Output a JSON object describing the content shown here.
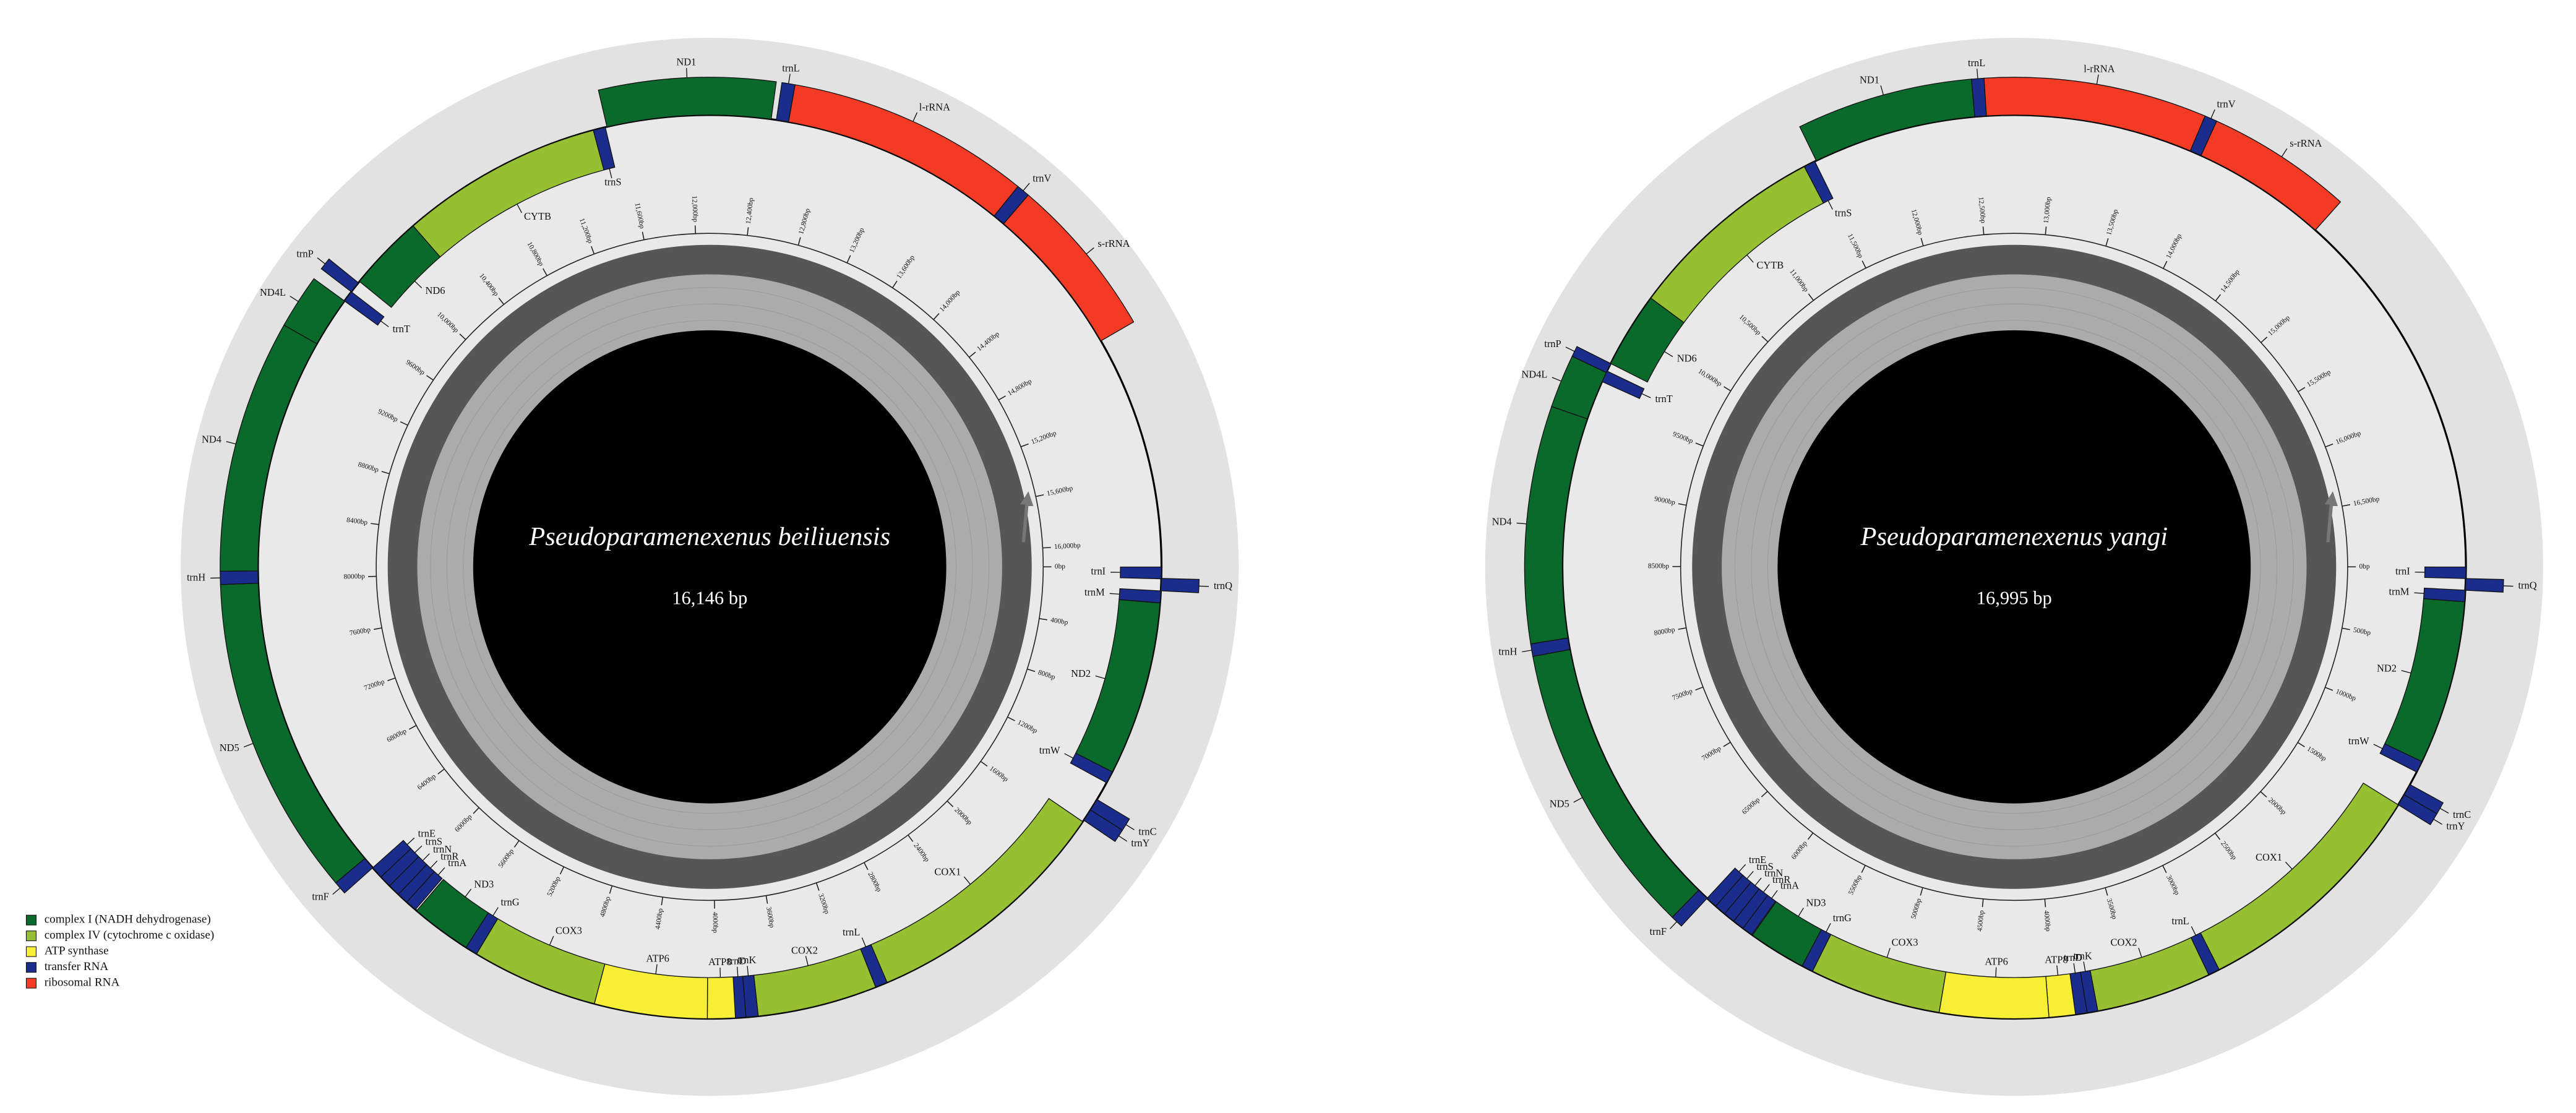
{
  "legend": [
    {
      "label": "complex I (NADH dehydrogenase)",
      "color": "#0a6a2c"
    },
    {
      "label": "complex IV (cytochrome c oxidase)",
      "color": "#96bf31"
    },
    {
      "label": "ATP synthase",
      "color": "#f7ef35"
    },
    {
      "label": "transfer RNA",
      "color": "#1b2d8c"
    },
    {
      "label": "ribosomal RNA",
      "color": "#f23a25"
    }
  ],
  "genomes": [
    {
      "name": "Pseudoparamenexenus beiliuensis",
      "size": {
        "value": 16146,
        "label": "16,146 bp"
      },
      "ticks": [
        {
          "value": 0,
          "label": "0bp"
        },
        {
          "value": 400,
          "label": "400bp"
        },
        {
          "value": 800,
          "label": "800bp"
        },
        {
          "value": 1200,
          "label": "1200bp"
        },
        {
          "value": 1600,
          "label": "1600bp"
        },
        {
          "value": 2000,
          "label": "2000bp"
        },
        {
          "value": 2400,
          "label": "2400bp"
        },
        {
          "value": 2800,
          "label": "2800bp"
        },
        {
          "value": 3200,
          "label": "3200bp"
        },
        {
          "value": 3600,
          "label": "3600bp"
        },
        {
          "value": 4000,
          "label": "4000bp"
        },
        {
          "value": 4400,
          "label": "4400bp"
        },
        {
          "value": 4800,
          "label": "4800bp"
        },
        {
          "value": 5200,
          "label": "5200bp"
        },
        {
          "value": 5600,
          "label": "5600bp"
        },
        {
          "value": 6000,
          "label": "6000bp"
        },
        {
          "value": 6400,
          "label": "6400bp"
        },
        {
          "value": 6800,
          "label": "6800bp"
        },
        {
          "value": 7200,
          "label": "7200bp"
        },
        {
          "value": 7600,
          "label": "7600bp"
        },
        {
          "value": 8000,
          "label": "8000bp"
        },
        {
          "value": 8400,
          "label": "8400bp"
        },
        {
          "value": 8800,
          "label": "8800bp"
        },
        {
          "value": 9200,
          "label": "9200bp"
        },
        {
          "value": 9600,
          "label": "9600bp"
        },
        {
          "value": 10000,
          "label": "10,000bp"
        },
        {
          "value": 10400,
          "label": "10,400bp"
        },
        {
          "value": 10800,
          "label": "10,800bp"
        },
        {
          "value": 11200,
          "label": "11,200bp"
        },
        {
          "value": 11600,
          "label": "11,600bp"
        },
        {
          "value": 12000,
          "label": "12,000bp"
        },
        {
          "value": 12400,
          "label": "12,400bp"
        },
        {
          "value": 12800,
          "label": "12,800bp"
        },
        {
          "value": 13200,
          "label": "13,200bp"
        },
        {
          "value": 13600,
          "label": "13,600bp"
        },
        {
          "value": 14000,
          "label": "14,000bp"
        },
        {
          "value": 14400,
          "label": "14,400bp"
        },
        {
          "value": 14800,
          "label": "14,800bp"
        },
        {
          "value": 15200,
          "label": "15,200bp"
        },
        {
          "value": 15600,
          "label": "15,600bp"
        },
        {
          "value": 16000,
          "label": "16,000bp"
        }
      ],
      "forward": [
        {
          "label": "trnI",
          "start": 1,
          "end": 68,
          "color": "#1b2d8c"
        },
        {
          "label": "trnM",
          "start": 137,
          "end": 205,
          "color": "#1b2d8c"
        },
        {
          "label": "ND2",
          "start": 206,
          "end": 1210,
          "color": "#0a6a2c"
        },
        {
          "label": "trnW",
          "start": 1210,
          "end": 1280,
          "color": "#1b2d8c"
        },
        {
          "label": "COX1",
          "start": 1540,
          "end": 3000,
          "color": "#96bf31"
        },
        {
          "label": "trnL",
          "start": 3000,
          "end": 3070,
          "color": "#1b2d8c"
        },
        {
          "label": "COX2",
          "start": 3070,
          "end": 3760,
          "color": "#96bf31"
        },
        {
          "label": "trnK",
          "start": 3760,
          "end": 3830,
          "color": "#1b2d8c"
        },
        {
          "label": "trnD",
          "start": 3830,
          "end": 3890,
          "color": "#1b2d8c"
        },
        {
          "label": "ATP8",
          "start": 3890,
          "end": 4050,
          "color": "#f7ef35"
        },
        {
          "label": "ATP6",
          "start": 4050,
          "end": 4700,
          "color": "#f7ef35"
        },
        {
          "label": "COX3",
          "start": 4700,
          "end": 5430,
          "color": "#96bf31"
        },
        {
          "label": "trnG",
          "start": 5430,
          "end": 5500,
          "color": "#1b2d8c"
        },
        {
          "label": "ND3",
          "start": 5500,
          "end": 5850,
          "color": "#0a6a2c"
        },
        {
          "label": "trnA",
          "start": 5860,
          "end": 5925,
          "color": "#1b2d8c"
        },
        {
          "label": "trnR",
          "start": 5925,
          "end": 5990,
          "color": "#1b2d8c"
        },
        {
          "label": "trnN",
          "start": 5990,
          "end": 6060,
          "color": "#1b2d8c"
        },
        {
          "label": "trnS",
          "start": 6060,
          "end": 6130,
          "color": "#1b2d8c"
        },
        {
          "label": "trnE",
          "start": 6130,
          "end": 6200,
          "color": "#1b2d8c"
        },
        {
          "label": "trnT",
          "start": 9690,
          "end": 9755,
          "color": "#1b2d8c"
        },
        {
          "label": "ND6",
          "start": 9830,
          "end": 10270,
          "color": "#0a6a2c"
        },
        {
          "label": "CYTB",
          "start": 10270,
          "end": 11440,
          "color": "#96bf31"
        },
        {
          "label": "trnS",
          "start": 11440,
          "end": 11510,
          "color": "#1b2d8c"
        }
      ],
      "reverse": [
        {
          "label": "trnQ",
          "start": 66,
          "end": 136,
          "color": "#1b2d8c"
        },
        {
          "label": "trnC",
          "start": 1390,
          "end": 1460,
          "color": "#1b2d8c"
        },
        {
          "label": "trnY",
          "start": 1460,
          "end": 1530,
          "color": "#1b2d8c"
        },
        {
          "label": "trnF",
          "start": 6200,
          "end": 6270,
          "color": "#1b2d8c"
        },
        {
          "label": "ND5",
          "start": 6270,
          "end": 7980,
          "color": "#0a6a2c"
        },
        {
          "label": "trnH",
          "start": 7980,
          "end": 8050,
          "color": "#1b2d8c"
        },
        {
          "label": "ND4",
          "start": 8050,
          "end": 9400,
          "color": "#0a6a2c"
        },
        {
          "label": "ND4L",
          "start": 9400,
          "end": 9690,
          "color": "#0a6a2c"
        },
        {
          "label": "trnP",
          "start": 9755,
          "end": 9820,
          "color": "#1b2d8c"
        },
        {
          "label": "ND1",
          "start": 11520,
          "end": 12460,
          "color": "#0a6a2c"
        },
        {
          "label": "trnL",
          "start": 12490,
          "end": 12560,
          "color": "#1b2d8c"
        },
        {
          "label": "l-rRNA",
          "start": 12560,
          "end": 13860,
          "color": "#f23a25"
        },
        {
          "label": "trnV",
          "start": 13860,
          "end": 13930,
          "color": "#1b2d8c"
        },
        {
          "label": "s-rRNA",
          "start": 13930,
          "end": 14800,
          "color": "#f23a25"
        }
      ]
    },
    {
      "name": "Pseudoparamenexenus yangi",
      "size": {
        "value": 16995,
        "label": "16,995 bp"
      },
      "ticks": [
        {
          "value": 0,
          "label": "0bp"
        },
        {
          "value": 500,
          "label": "500bp"
        },
        {
          "value": 1000,
          "label": "1000bp"
        },
        {
          "value": 1500,
          "label": "1500bp"
        },
        {
          "value": 2000,
          "label": "2000bp"
        },
        {
          "value": 2500,
          "label": "2500bp"
        },
        {
          "value": 3000,
          "label": "3000bp"
        },
        {
          "value": 3500,
          "label": "3500bp"
        },
        {
          "value": 4000,
          "label": "4000bp"
        },
        {
          "value": 4500,
          "label": "4500bp"
        },
        {
          "value": 5000,
          "label": "5000bp"
        },
        {
          "value": 5500,
          "label": "5500bp"
        },
        {
          "value": 6000,
          "label": "6000bp"
        },
        {
          "value": 6500,
          "label": "6500bp"
        },
        {
          "value": 7000,
          "label": "7000bp"
        },
        {
          "value": 7500,
          "label": "7500bp"
        },
        {
          "value": 8000,
          "label": "8000bp"
        },
        {
          "value": 8500,
          "label": "8500bp"
        },
        {
          "value": 9000,
          "label": "9000bp"
        },
        {
          "value": 9500,
          "label": "9500bp"
        },
        {
          "value": 10000,
          "label": "10,000bp"
        },
        {
          "value": 10500,
          "label": "10,500bp"
        },
        {
          "value": 11000,
          "label": "11,000bp"
        },
        {
          "value": 11500,
          "label": "11,500bp"
        },
        {
          "value": 12000,
          "label": "12,000bp"
        },
        {
          "value": 12500,
          "label": "12,500bp"
        },
        {
          "value": 13000,
          "label": "13,000bp"
        },
        {
          "value": 13500,
          "label": "13,500bp"
        },
        {
          "value": 14000,
          "label": "14,000bp"
        },
        {
          "value": 14500,
          "label": "14,500bp"
        },
        {
          "value": 15000,
          "label": "15,000bp"
        },
        {
          "value": 15500,
          "label": "15,500bp"
        },
        {
          "value": 16000,
          "label": "16,000bp"
        },
        {
          "value": 16500,
          "label": "16,500bp"
        }
      ],
      "forward": [
        {
          "label": "trnI",
          "start": 1,
          "end": 70,
          "color": "#1b2d8c"
        },
        {
          "label": "trnM",
          "start": 140,
          "end": 210,
          "color": "#1b2d8c"
        },
        {
          "label": "ND2",
          "start": 210,
          "end": 1205,
          "color": "#0a6a2c"
        },
        {
          "label": "trnW",
          "start": 1205,
          "end": 1275,
          "color": "#1b2d8c"
        },
        {
          "label": "COX1",
          "start": 1500,
          "end": 2975,
          "color": "#96bf31"
        },
        {
          "label": "trnL",
          "start": 2975,
          "end": 3045,
          "color": "#1b2d8c"
        },
        {
          "label": "COX2",
          "start": 3045,
          "end": 3745,
          "color": "#96bf31"
        },
        {
          "label": "trnK",
          "start": 3745,
          "end": 3810,
          "color": "#1b2d8c"
        },
        {
          "label": "trnD",
          "start": 3810,
          "end": 3880,
          "color": "#1b2d8c"
        },
        {
          "label": "ATP8",
          "start": 3880,
          "end": 4040,
          "color": "#f7ef35"
        },
        {
          "label": "ATP6",
          "start": 4040,
          "end": 4700,
          "color": "#f7ef35"
        },
        {
          "label": "COX3",
          "start": 4700,
          "end": 5500,
          "color": "#96bf31"
        },
        {
          "label": "trnG",
          "start": 5500,
          "end": 5570,
          "color": "#1b2d8c"
        },
        {
          "label": "ND3",
          "start": 5570,
          "end": 5920,
          "color": "#0a6a2c"
        },
        {
          "label": "trnA",
          "start": 5925,
          "end": 5990,
          "color": "#1b2d8c"
        },
        {
          "label": "trnR",
          "start": 5990,
          "end": 6060,
          "color": "#1b2d8c"
        },
        {
          "label": "trnN",
          "start": 6060,
          "end": 6130,
          "color": "#1b2d8c"
        },
        {
          "label": "trnS",
          "start": 6130,
          "end": 6200,
          "color": "#1b2d8c"
        },
        {
          "label": "trnE",
          "start": 6200,
          "end": 6270,
          "color": "#1b2d8c"
        },
        {
          "label": "trnT",
          "start": 9640,
          "end": 9710,
          "color": "#1b2d8c"
        },
        {
          "label": "ND6",
          "start": 9760,
          "end": 10220,
          "color": "#0a6a2c"
        },
        {
          "label": "CYTB",
          "start": 10220,
          "end": 11440,
          "color": "#96bf31"
        },
        {
          "label": "trnS",
          "start": 11440,
          "end": 11510,
          "color": "#1b2d8c"
        }
      ],
      "reverse": [
        {
          "label": "trnQ",
          "start": 70,
          "end": 140,
          "color": "#1b2d8c"
        },
        {
          "label": "trnC",
          "start": 1360,
          "end": 1430,
          "color": "#1b2d8c"
        },
        {
          "label": "trnY",
          "start": 1430,
          "end": 1500,
          "color": "#1b2d8c"
        },
        {
          "label": "trnF",
          "start": 6270,
          "end": 6340,
          "color": "#1b2d8c"
        },
        {
          "label": "ND5",
          "start": 6340,
          "end": 8000,
          "color": "#0a6a2c"
        },
        {
          "label": "trnH",
          "start": 8000,
          "end": 8070,
          "color": "#1b2d8c"
        },
        {
          "label": "ND4",
          "start": 8070,
          "end": 9400,
          "color": "#0a6a2c"
        },
        {
          "label": "ND4L",
          "start": 9400,
          "end": 9700,
          "color": "#0a6a2c"
        },
        {
          "label": "trnP",
          "start": 9700,
          "end": 9760,
          "color": "#1b2d8c"
        },
        {
          "label": "ND1",
          "start": 11520,
          "end": 12510,
          "color": "#0a6a2c"
        },
        {
          "label": "trnL",
          "start": 12510,
          "end": 12580,
          "color": "#1b2d8c"
        },
        {
          "label": "l-rRNA",
          "start": 12580,
          "end": 13830,
          "color": "#f23a25"
        },
        {
          "label": "trnV",
          "start": 13830,
          "end": 13900,
          "color": "#1b2d8c"
        },
        {
          "label": "s-rRNA",
          "start": 13900,
          "end": 14720,
          "color": "#f23a25"
        }
      ]
    }
  ]
}
